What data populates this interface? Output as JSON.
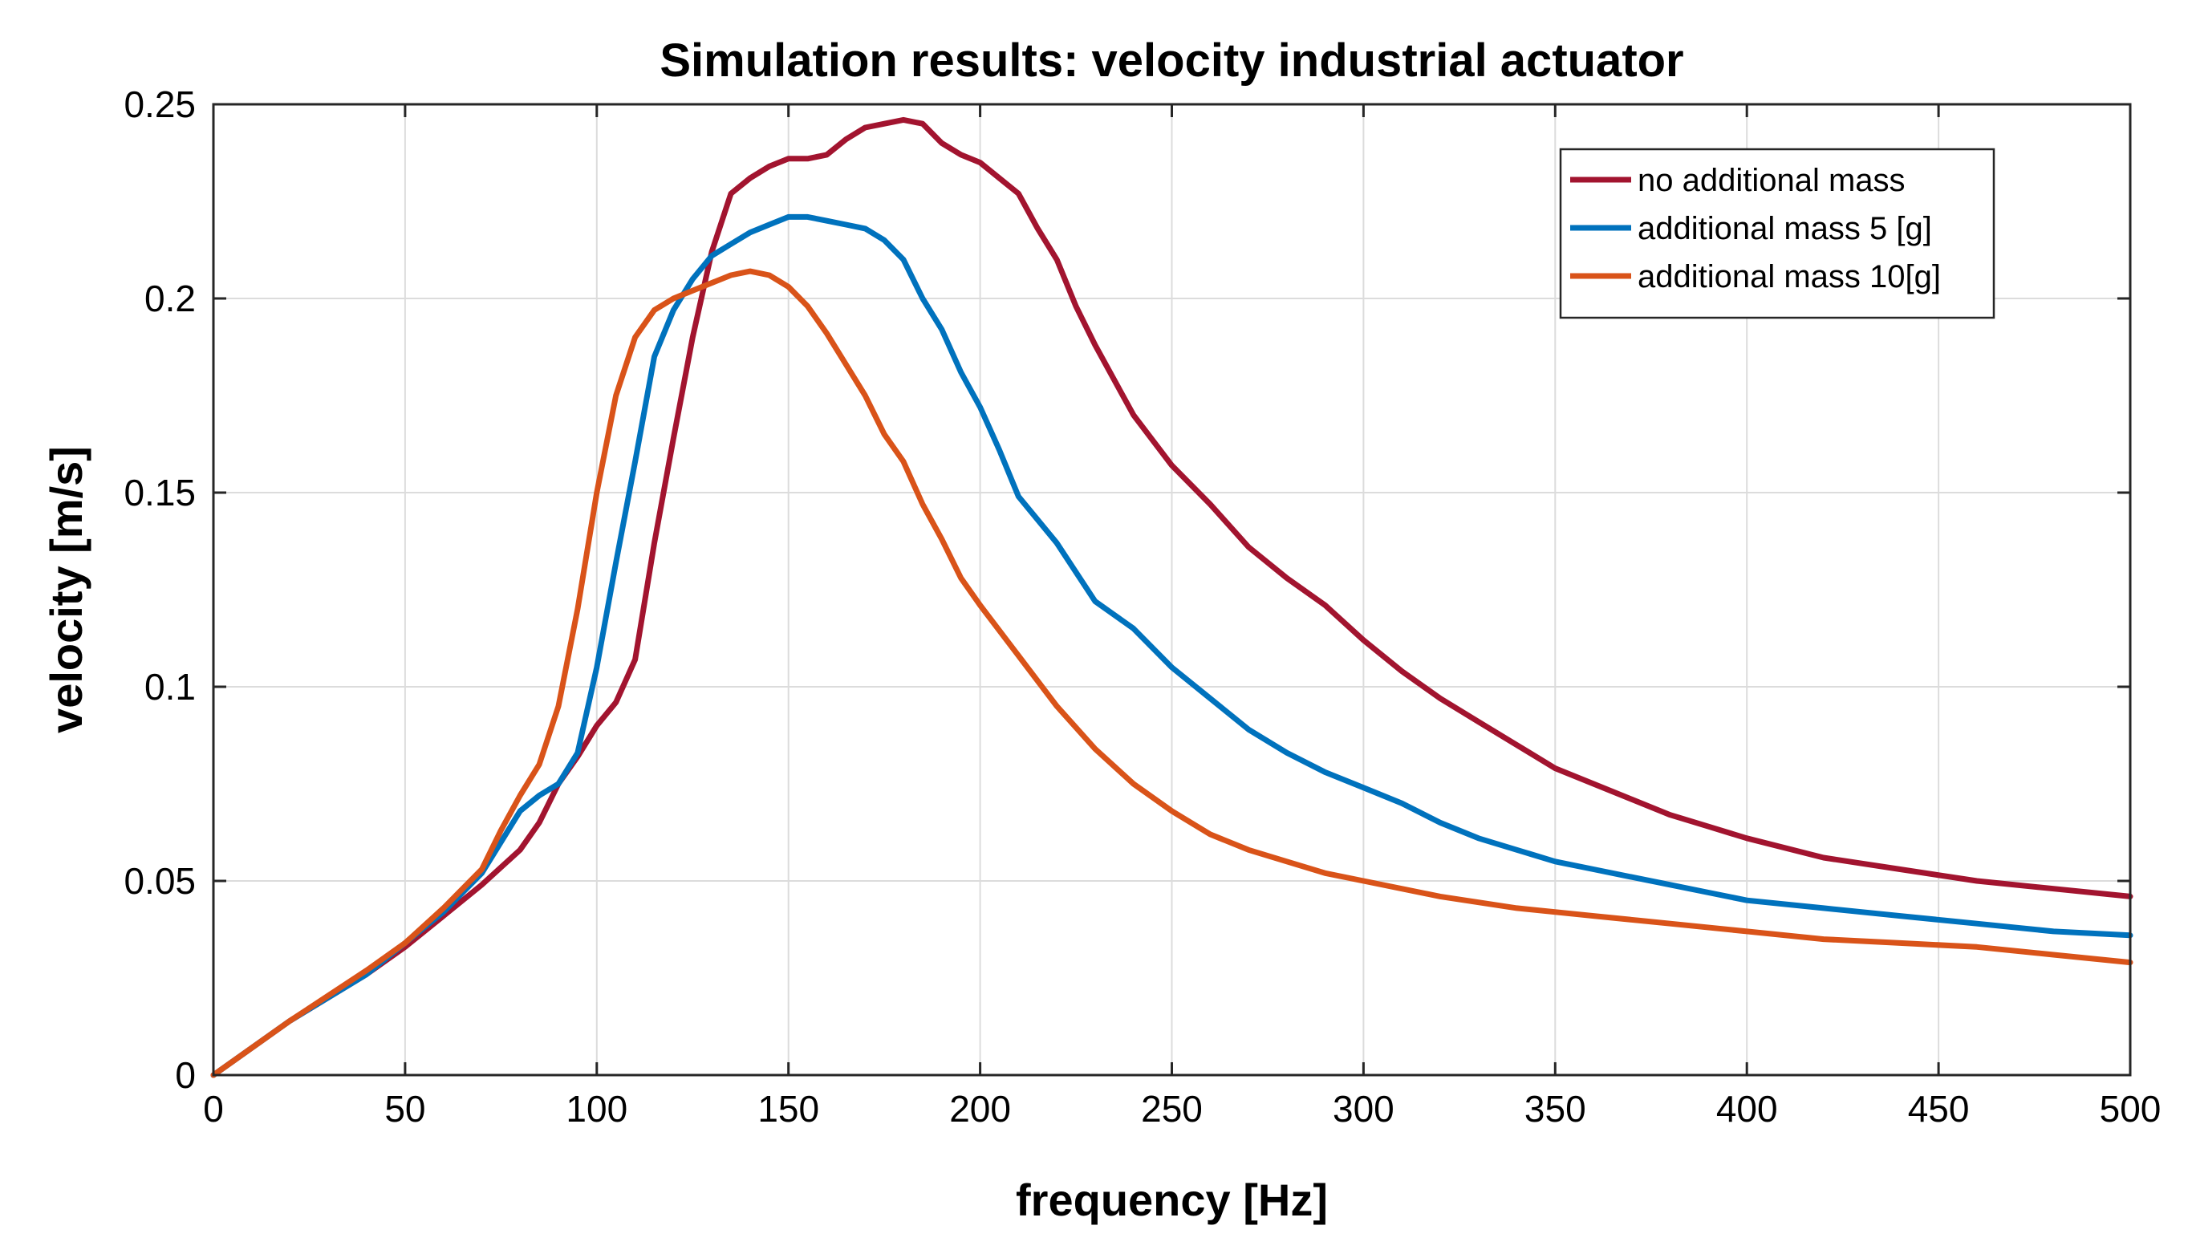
{
  "chart_data": {
    "type": "line",
    "title": "Simulation results: velocity industrial actuator",
    "xlabel": "frequency [Hz]",
    "ylabel": "velocity [m/s]",
    "xlim": [
      0,
      500
    ],
    "ylim": [
      0,
      0.25
    ],
    "x_ticks": [
      0,
      50,
      100,
      150,
      200,
      250,
      300,
      350,
      400,
      450,
      500
    ],
    "y_ticks": [
      0,
      0.05,
      0.1,
      0.15,
      0.2,
      0.25
    ],
    "x_tick_labels": [
      "0",
      "50",
      "100",
      "150",
      "200",
      "250",
      "300",
      "350",
      "400",
      "450",
      "500"
    ],
    "y_tick_labels": [
      "0",
      "0.05",
      "0.1",
      "0.15",
      "0.2",
      "0.25"
    ],
    "grid": true,
    "legend_position": "top-right",
    "series": [
      {
        "name": "no additional mass",
        "color": "#A2142F",
        "x": [
          0,
          20,
          40,
          50,
          60,
          70,
          80,
          85,
          90,
          95,
          100,
          105,
          110,
          115,
          120,
          125,
          130,
          135,
          140,
          145,
          150,
          155,
          160,
          165,
          170,
          175,
          180,
          185,
          190,
          195,
          200,
          205,
          210,
          215,
          220,
          225,
          230,
          240,
          250,
          260,
          270,
          280,
          290,
          300,
          310,
          320,
          330,
          340,
          350,
          360,
          370,
          380,
          390,
          400,
          420,
          440,
          460,
          480,
          500
        ],
        "y": [
          0,
          0.014,
          0.026,
          0.033,
          0.041,
          0.049,
          0.058,
          0.065,
          0.075,
          0.082,
          0.09,
          0.096,
          0.107,
          0.137,
          0.164,
          0.19,
          0.212,
          0.227,
          0.231,
          0.234,
          0.236,
          0.236,
          0.237,
          0.241,
          0.244,
          0.245,
          0.246,
          0.245,
          0.24,
          0.237,
          0.235,
          0.231,
          0.227,
          0.218,
          0.21,
          0.198,
          0.188,
          0.17,
          0.157,
          0.147,
          0.136,
          0.128,
          0.121,
          0.112,
          0.104,
          0.097,
          0.091,
          0.085,
          0.079,
          0.075,
          0.071,
          0.067,
          0.064,
          0.061,
          0.056,
          0.053,
          0.05,
          0.048,
          0.046
        ]
      },
      {
        "name": "additional mass 5 [g]",
        "color": "#0072BD",
        "x": [
          0,
          20,
          40,
          50,
          60,
          70,
          80,
          85,
          90,
          95,
          100,
          105,
          110,
          115,
          120,
          125,
          130,
          135,
          140,
          145,
          150,
          155,
          160,
          165,
          170,
          175,
          180,
          185,
          190,
          195,
          200,
          205,
          210,
          220,
          230,
          240,
          250,
          260,
          270,
          280,
          290,
          300,
          310,
          320,
          330,
          340,
          350,
          360,
          370,
          380,
          390,
          400,
          420,
          440,
          460,
          480,
          500
        ],
        "y": [
          0,
          0.014,
          0.026,
          0.034,
          0.042,
          0.052,
          0.068,
          0.072,
          0.075,
          0.083,
          0.105,
          0.132,
          0.158,
          0.185,
          0.197,
          0.205,
          0.211,
          0.214,
          0.217,
          0.219,
          0.221,
          0.221,
          0.22,
          0.219,
          0.218,
          0.215,
          0.21,
          0.2,
          0.192,
          0.181,
          0.172,
          0.161,
          0.149,
          0.137,
          0.122,
          0.115,
          0.105,
          0.097,
          0.089,
          0.083,
          0.078,
          0.074,
          0.07,
          0.065,
          0.061,
          0.058,
          0.055,
          0.053,
          0.051,
          0.049,
          0.047,
          0.045,
          0.043,
          0.041,
          0.039,
          0.037,
          0.036
        ]
      },
      {
        "name": "additional mass 10[g]",
        "color": "#D95319",
        "x": [
          0,
          20,
          40,
          50,
          60,
          70,
          75,
          80,
          85,
          90,
          95,
          100,
          105,
          110,
          115,
          120,
          125,
          130,
          135,
          140,
          145,
          150,
          155,
          160,
          165,
          170,
          175,
          180,
          185,
          190,
          195,
          200,
          210,
          220,
          230,
          240,
          250,
          260,
          270,
          280,
          290,
          300,
          320,
          340,
          360,
          380,
          400,
          420,
          440,
          460,
          480,
          500
        ],
        "y": [
          0,
          0.014,
          0.027,
          0.034,
          0.043,
          0.053,
          0.063,
          0.072,
          0.08,
          0.095,
          0.12,
          0.15,
          0.175,
          0.19,
          0.197,
          0.2,
          0.202,
          0.204,
          0.206,
          0.207,
          0.206,
          0.203,
          0.198,
          0.191,
          0.183,
          0.175,
          0.165,
          0.158,
          0.147,
          0.138,
          0.128,
          0.121,
          0.108,
          0.095,
          0.084,
          0.075,
          0.068,
          0.062,
          0.058,
          0.055,
          0.052,
          0.05,
          0.046,
          0.043,
          0.041,
          0.039,
          0.037,
          0.035,
          0.034,
          0.033,
          0.031,
          0.029
        ]
      }
    ]
  }
}
